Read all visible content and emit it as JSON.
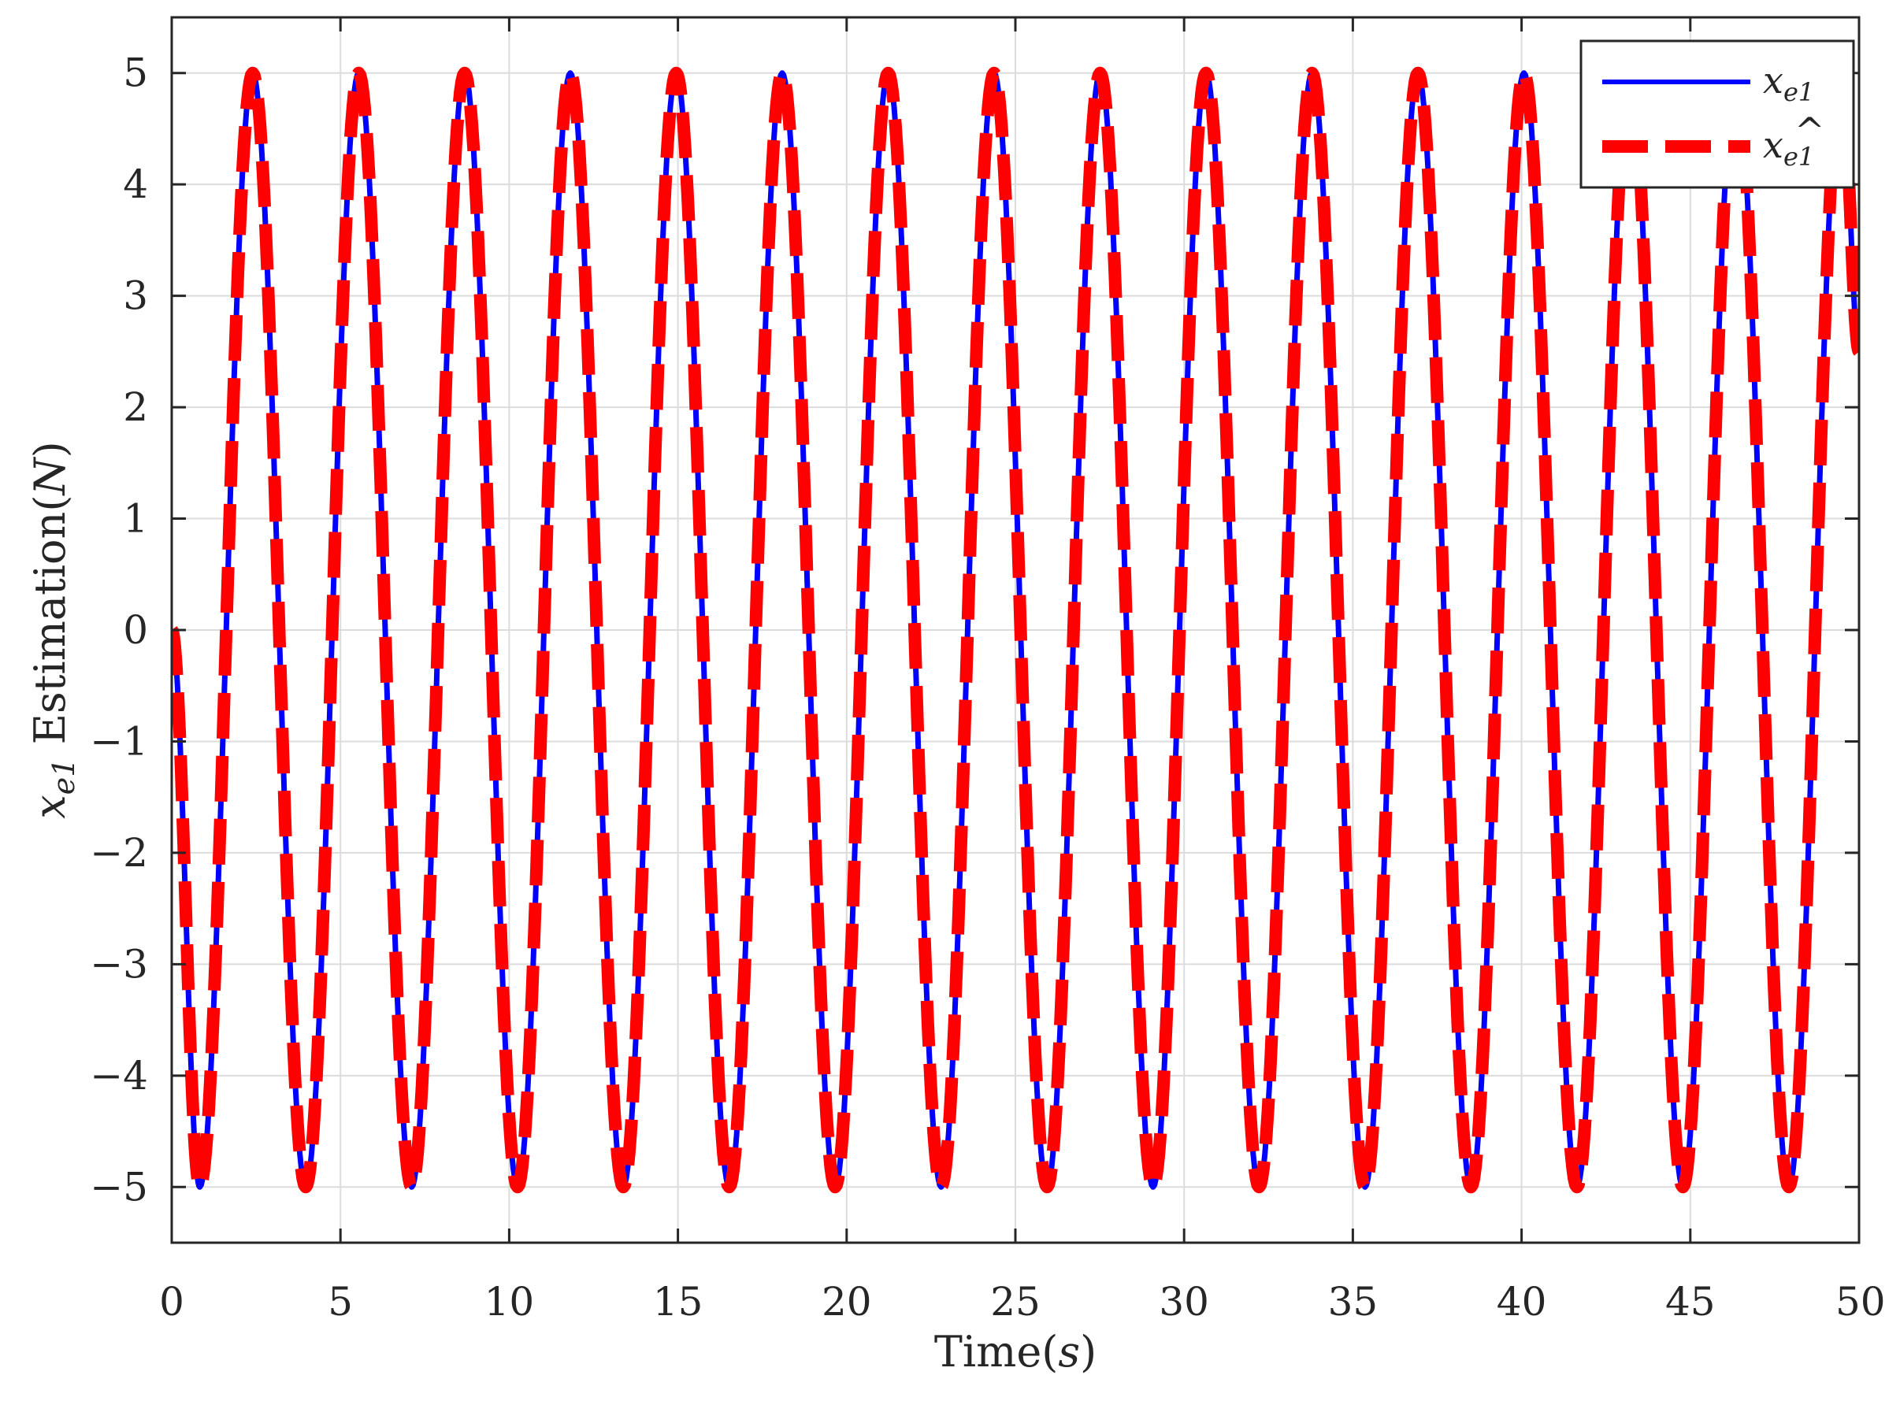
{
  "chart_data": {
    "type": "line",
    "xlabel": {
      "main": "Time(",
      "var": "s",
      "close": ")"
    },
    "ylabel": {
      "var": "x",
      "sub": "e1",
      "text": " Estimation(",
      "unit": "N",
      "close": ")"
    },
    "xlim": [
      0,
      50
    ],
    "ylim": [
      -5.5,
      5.5
    ],
    "xticks": [
      0,
      5,
      10,
      15,
      20,
      25,
      30,
      35,
      40,
      45,
      50
    ],
    "xtick_labels": [
      "0",
      "5",
      "10",
      "15",
      "20",
      "25",
      "30",
      "35",
      "40",
      "45",
      "50"
    ],
    "yticks": [
      -5,
      -4,
      -3,
      -2,
      -1,
      0,
      1,
      2,
      3,
      4,
      5
    ],
    "ytick_labels": [
      "−5",
      "−4",
      "−3",
      "−2",
      "−1",
      "0",
      "1",
      "2",
      "3",
      "4",
      "5"
    ],
    "grid": true,
    "legend_position": "top-right",
    "series": [
      {
        "name": "x_e1",
        "legend_var": "x",
        "legend_sub": "e1",
        "color": "#0000ff",
        "style": "solid",
        "x": [
          0,
          0.83,
          2.4,
          3.97,
          5.54,
          7.11,
          8.68,
          10.25,
          11.81,
          13.38,
          14.95,
          16.52,
          18.09,
          19.66,
          21.23,
          22.8,
          24.37,
          25.94,
          27.51,
          29.08,
          30.65,
          32.22,
          33.79,
          35.36,
          36.93,
          38.5,
          40.07,
          41.64,
          43.21,
          44.78,
          46.35,
          47.92,
          49.48,
          50
        ],
        "y": [
          0,
          -5,
          5,
          -5,
          5,
          -5,
          5,
          -5,
          5,
          -5,
          5,
          -5,
          5,
          -5,
          5,
          -5,
          5,
          -5,
          5,
          -5,
          5,
          -5,
          5,
          -5,
          5,
          -5,
          5,
          -5,
          5,
          -5,
          5,
          -5,
          5,
          2.5
        ]
      },
      {
        "name": "x_e1 hat",
        "legend_var": "x",
        "legend_sub": "e1",
        "legend_hat": "^",
        "color": "#ff0000",
        "style": "dashed",
        "x": [
          0,
          0.83,
          2.4,
          3.97,
          5.54,
          7.11,
          8.68,
          10.25,
          11.81,
          13.38,
          14.95,
          16.52,
          18.09,
          19.66,
          21.23,
          22.8,
          24.37,
          25.94,
          27.51,
          29.08,
          30.65,
          32.22,
          33.79,
          35.36,
          36.93,
          38.5,
          40.07,
          41.64,
          43.21,
          44.78,
          46.35,
          47.92,
          49.48,
          50
        ],
        "y": [
          0,
          -5,
          5,
          -5,
          5,
          -5,
          5,
          -5,
          5,
          -5,
          5,
          -5,
          5,
          -5,
          5,
          -5,
          5,
          -5,
          5,
          -5,
          5,
          -5,
          5,
          -5,
          5,
          -5,
          5,
          -5,
          5,
          -5,
          5,
          -5,
          5,
          2.5
        ]
      }
    ]
  }
}
